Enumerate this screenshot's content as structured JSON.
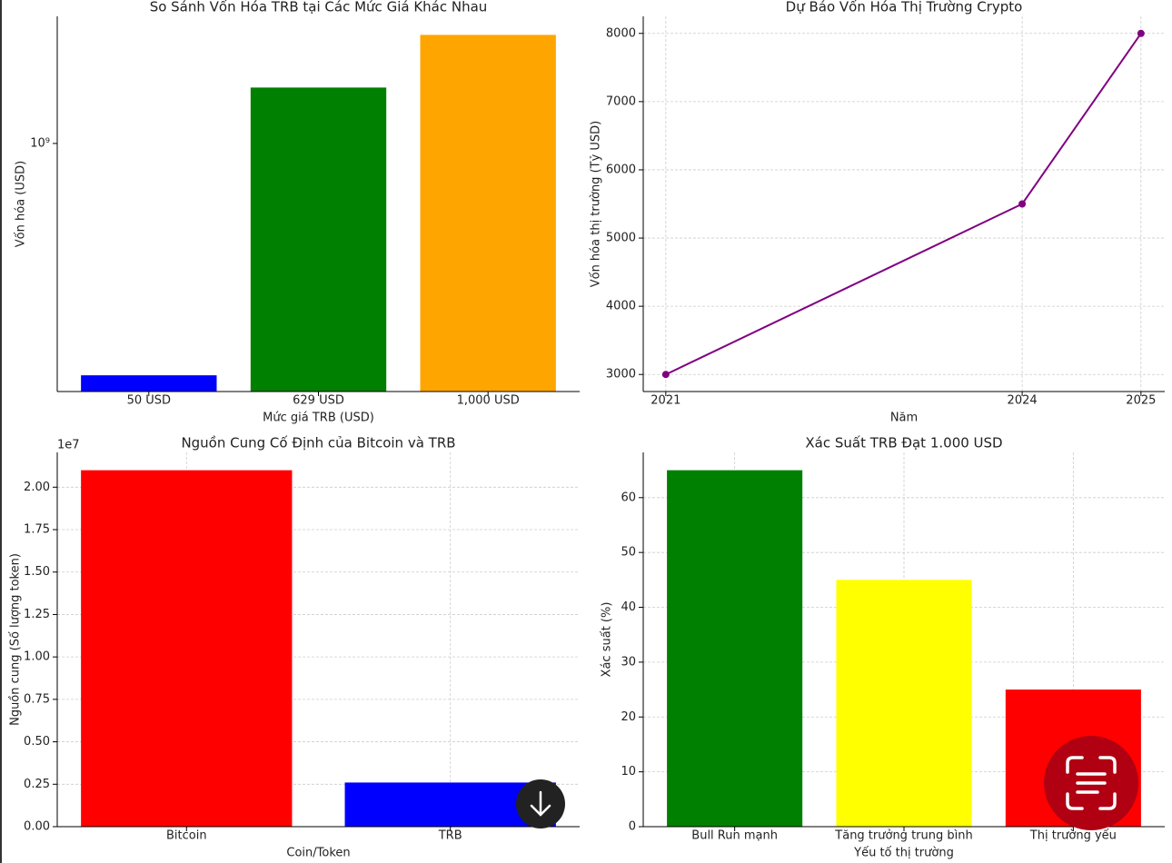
{
  "chart_data": [
    {
      "type": "bar",
      "title": "So Sánh Vốn Hóa TRB tại Các Mức Giá Khác Nhau",
      "xlabel": "Mức giá TRB (USD)",
      "ylabel": "Vốn hóa (USD)",
      "categories": [
        "50 USD",
        "629 USD",
        "1,000 USD"
      ],
      "values": [
        130000000,
        1635400000,
        2600000000
      ],
      "colors": [
        "#0000ff",
        "#008000",
        "#ffa500"
      ],
      "log_scale": true,
      "grid": false,
      "ylim": [
        112700000,
        3060000000
      ],
      "yticks": [
        {
          "value": 1000000000,
          "label": "10⁹"
        }
      ]
    },
    {
      "type": "line",
      "title": "Dự Báo Vốn Hóa Thị Trường Crypto",
      "xlabel": "Năm",
      "ylabel": "Vốn hóa thị trường (Tỷ USD)",
      "x": [
        2021,
        2024,
        2025
      ],
      "values": [
        3000,
        5500,
        8000
      ],
      "color": "#800080",
      "grid": true,
      "xlim": [
        2020.81,
        2025.2
      ],
      "xticks": [
        2021,
        2024,
        2025
      ],
      "ylim": [
        2750,
        8250
      ],
      "yticks": [
        3000,
        4000,
        5000,
        6000,
        7000,
        8000
      ]
    },
    {
      "type": "bar",
      "title": "Nguồn Cung Cố Định của Bitcoin và TRB",
      "xlabel": "Coin/Token",
      "ylabel": "Nguồn cung (Số lượng token)",
      "y_offset_label": "1e7",
      "categories": [
        "Bitcoin",
        "TRB"
      ],
      "values": [
        21000000,
        2600000
      ],
      "colors": [
        "#ff0000",
        "#0000ff"
      ],
      "grid": true,
      "ylim": [
        0,
        22050000
      ],
      "yticks": [
        {
          "value": 0,
          "label": "0.00"
        },
        {
          "value": 2500000,
          "label": "0.25"
        },
        {
          "value": 5000000,
          "label": "0.50"
        },
        {
          "value": 7500000,
          "label": "0.75"
        },
        {
          "value": 10000000,
          "label": "1.00"
        },
        {
          "value": 12500000,
          "label": "1.25"
        },
        {
          "value": 15000000,
          "label": "1.50"
        },
        {
          "value": 17500000,
          "label": "1.75"
        },
        {
          "value": 20000000,
          "label": "2.00"
        }
      ]
    },
    {
      "type": "bar",
      "title": "Xác Suất TRB Đạt 1.000 USD",
      "xlabel": "Yếu tố thị trường",
      "ylabel": "Xác suất (%)",
      "categories": [
        "Bull Run mạnh",
        "Tăng trưởng trung bình",
        "Thị trường yếu"
      ],
      "values": [
        65,
        45,
        25
      ],
      "colors": [
        "#008000",
        "#ffff00",
        "#ff0000"
      ],
      "grid": true,
      "ylim": [
        0,
        68.25
      ],
      "yticks": [
        0,
        10,
        20,
        30,
        40,
        50,
        60
      ]
    }
  ]
}
